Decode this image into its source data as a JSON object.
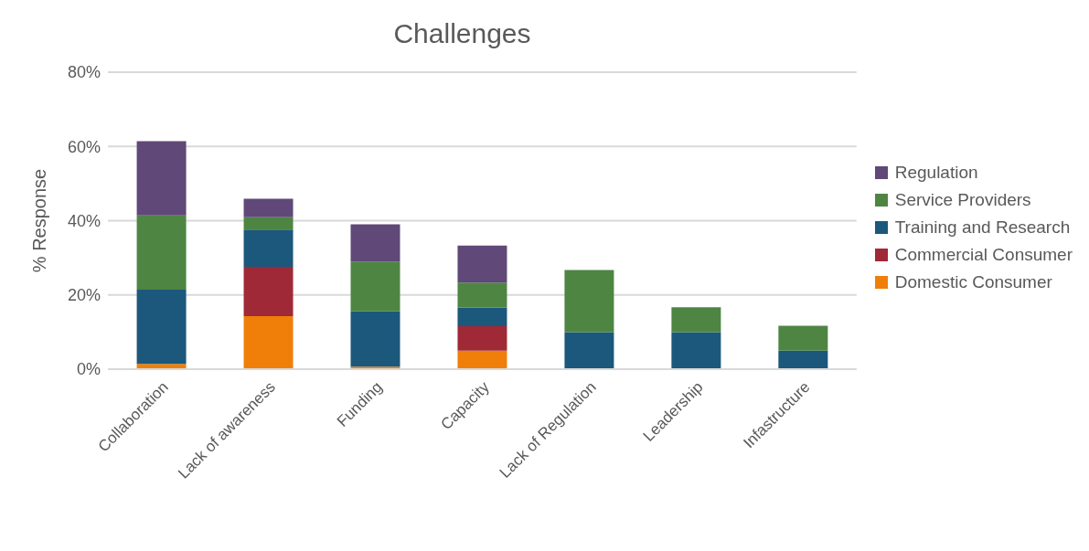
{
  "chart_data": {
    "type": "bar",
    "title": "Challenges",
    "ylabel": "% Response",
    "categories": [
      "Collaboration",
      "Lack of awareness",
      "Funding",
      "Capacity",
      "Lack of Regulation",
      "Leadership",
      "Infastructure"
    ],
    "stacked": true,
    "series": [
      {
        "name": "Domestic Consumer",
        "color": "#f07f09",
        "values": [
          1.4,
          14.3,
          0.7,
          5,
          0,
          0,
          0
        ]
      },
      {
        "name": "Commercial Consumer",
        "color": "#9f2936",
        "values": [
          0,
          13.3,
          0,
          6.6,
          0,
          0,
          0
        ]
      },
      {
        "name": "Training and Research",
        "color": "#1b587c",
        "values": [
          20,
          10,
          14.9,
          5,
          10,
          10,
          5
        ]
      },
      {
        "name": "Service Providers",
        "color": "#4e8542",
        "values": [
          20,
          3.3,
          13.4,
          6.7,
          16.7,
          6.7,
          6.7
        ]
      },
      {
        "name": "Regulation",
        "color": "#604878",
        "values": [
          20,
          5,
          10,
          10,
          0,
          0,
          0
        ]
      }
    ],
    "ylim": [
      0,
      80
    ],
    "yticks": [
      {
        "value": 0,
        "label": "0%"
      },
      {
        "value": 20,
        "label": "20%"
      },
      {
        "value": 40,
        "label": "40%"
      },
      {
        "value": 60,
        "label": "60%"
      },
      {
        "value": 80,
        "label": "80%"
      }
    ],
    "grid": "y",
    "legend": "right"
  }
}
